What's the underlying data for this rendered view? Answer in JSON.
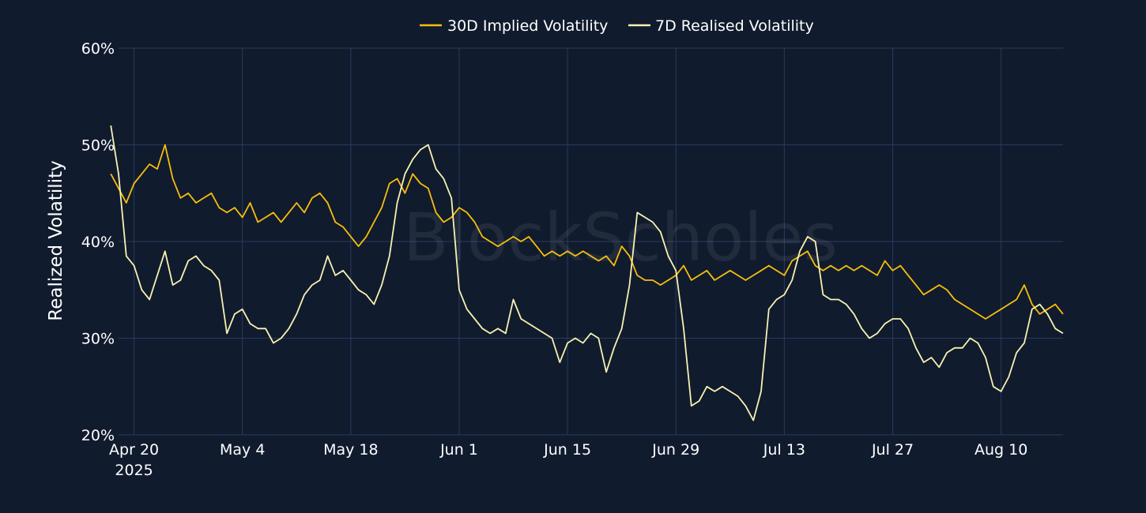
{
  "watermark": "BlockScholes",
  "chart_data": {
    "type": "line",
    "ylabel": "Realized Volatility",
    "ylim": [
      0.2,
      0.6
    ],
    "y_ticks": [
      {
        "value": 0.2,
        "label": "20%"
      },
      {
        "value": 0.3,
        "label": "30%"
      },
      {
        "value": 0.4,
        "label": "40%"
      },
      {
        "value": 0.5,
        "label": "50%"
      },
      {
        "value": 0.6,
        "label": "60%"
      }
    ],
    "xlim": [
      "2025-04-18",
      "2025-08-18"
    ],
    "x_ticks": [
      {
        "date": "2025-04-20",
        "label": "Apr 20",
        "sublabel": "2025"
      },
      {
        "date": "2025-05-04",
        "label": "May 4"
      },
      {
        "date": "2025-05-18",
        "label": "May 18"
      },
      {
        "date": "2025-06-01",
        "label": "Jun 1"
      },
      {
        "date": "2025-06-15",
        "label": "Jun 15"
      },
      {
        "date": "2025-06-29",
        "label": "Jun 29"
      },
      {
        "date": "2025-07-13",
        "label": "Jul 13"
      },
      {
        "date": "2025-07-27",
        "label": "Jul 27"
      },
      {
        "date": "2025-08-10",
        "label": "Aug 10"
      }
    ],
    "grid": true,
    "legend_position": "top-center",
    "series": [
      {
        "name": "30D Implied Volatility",
        "color": "#f5bf0b",
        "points": [
          [
            "2025-04-17",
            0.47
          ],
          [
            "2025-04-18",
            0.455
          ],
          [
            "2025-04-19",
            0.44
          ],
          [
            "2025-04-20",
            0.46
          ],
          [
            "2025-04-21",
            0.47
          ],
          [
            "2025-04-22",
            0.48
          ],
          [
            "2025-04-23",
            0.475
          ],
          [
            "2025-04-24",
            0.5
          ],
          [
            "2025-04-25",
            0.465
          ],
          [
            "2025-04-26",
            0.445
          ],
          [
            "2025-04-27",
            0.45
          ],
          [
            "2025-04-28",
            0.44
          ],
          [
            "2025-04-29",
            0.445
          ],
          [
            "2025-04-30",
            0.45
          ],
          [
            "2025-05-01",
            0.435
          ],
          [
            "2025-05-02",
            0.43
          ],
          [
            "2025-05-03",
            0.435
          ],
          [
            "2025-05-04",
            0.425
          ],
          [
            "2025-05-05",
            0.44
          ],
          [
            "2025-05-06",
            0.42
          ],
          [
            "2025-05-07",
            0.425
          ],
          [
            "2025-05-08",
            0.43
          ],
          [
            "2025-05-09",
            0.42
          ],
          [
            "2025-05-10",
            0.43
          ],
          [
            "2025-05-11",
            0.44
          ],
          [
            "2025-05-12",
            0.43
          ],
          [
            "2025-05-13",
            0.445
          ],
          [
            "2025-05-14",
            0.45
          ],
          [
            "2025-05-15",
            0.44
          ],
          [
            "2025-05-16",
            0.42
          ],
          [
            "2025-05-17",
            0.415
          ],
          [
            "2025-05-18",
            0.405
          ],
          [
            "2025-05-19",
            0.395
          ],
          [
            "2025-05-20",
            0.405
          ],
          [
            "2025-05-21",
            0.42
          ],
          [
            "2025-05-22",
            0.435
          ],
          [
            "2025-05-23",
            0.46
          ],
          [
            "2025-05-24",
            0.465
          ],
          [
            "2025-05-25",
            0.45
          ],
          [
            "2025-05-26",
            0.47
          ],
          [
            "2025-05-27",
            0.46
          ],
          [
            "2025-05-28",
            0.455
          ],
          [
            "2025-05-29",
            0.43
          ],
          [
            "2025-05-30",
            0.42
          ],
          [
            "2025-05-31",
            0.425
          ],
          [
            "2025-06-01",
            0.435
          ],
          [
            "2025-06-02",
            0.43
          ],
          [
            "2025-06-03",
            0.42
          ],
          [
            "2025-06-04",
            0.405
          ],
          [
            "2025-06-05",
            0.4
          ],
          [
            "2025-06-06",
            0.395
          ],
          [
            "2025-06-07",
            0.4
          ],
          [
            "2025-06-08",
            0.405
          ],
          [
            "2025-06-09",
            0.4
          ],
          [
            "2025-06-10",
            0.405
          ],
          [
            "2025-06-11",
            0.395
          ],
          [
            "2025-06-12",
            0.385
          ],
          [
            "2025-06-13",
            0.39
          ],
          [
            "2025-06-14",
            0.385
          ],
          [
            "2025-06-15",
            0.39
          ],
          [
            "2025-06-16",
            0.385
          ],
          [
            "2025-06-17",
            0.39
          ],
          [
            "2025-06-18",
            0.385
          ],
          [
            "2025-06-19",
            0.38
          ],
          [
            "2025-06-20",
            0.385
          ],
          [
            "2025-06-21",
            0.375
          ],
          [
            "2025-06-22",
            0.395
          ],
          [
            "2025-06-23",
            0.385
          ],
          [
            "2025-06-24",
            0.365
          ],
          [
            "2025-06-25",
            0.36
          ],
          [
            "2025-06-26",
            0.36
          ],
          [
            "2025-06-27",
            0.355
          ],
          [
            "2025-06-28",
            0.36
          ],
          [
            "2025-06-29",
            0.365
          ],
          [
            "2025-06-30",
            0.375
          ],
          [
            "2025-07-01",
            0.36
          ],
          [
            "2025-07-02",
            0.365
          ],
          [
            "2025-07-03",
            0.37
          ],
          [
            "2025-07-04",
            0.36
          ],
          [
            "2025-07-05",
            0.365
          ],
          [
            "2025-07-06",
            0.37
          ],
          [
            "2025-07-07",
            0.365
          ],
          [
            "2025-07-08",
            0.36
          ],
          [
            "2025-07-09",
            0.365
          ],
          [
            "2025-07-10",
            0.37
          ],
          [
            "2025-07-11",
            0.375
          ],
          [
            "2025-07-12",
            0.37
          ],
          [
            "2025-07-13",
            0.365
          ],
          [
            "2025-07-14",
            0.38
          ],
          [
            "2025-07-15",
            0.385
          ],
          [
            "2025-07-16",
            0.39
          ],
          [
            "2025-07-17",
            0.375
          ],
          [
            "2025-07-18",
            0.37
          ],
          [
            "2025-07-19",
            0.375
          ],
          [
            "2025-07-20",
            0.37
          ],
          [
            "2025-07-21",
            0.375
          ],
          [
            "2025-07-22",
            0.37
          ],
          [
            "2025-07-23",
            0.375
          ],
          [
            "2025-07-24",
            0.37
          ],
          [
            "2025-07-25",
            0.365
          ],
          [
            "2025-07-26",
            0.38
          ],
          [
            "2025-07-27",
            0.37
          ],
          [
            "2025-07-28",
            0.375
          ],
          [
            "2025-07-29",
            0.365
          ],
          [
            "2025-07-30",
            0.355
          ],
          [
            "2025-07-31",
            0.345
          ],
          [
            "2025-08-01",
            0.35
          ],
          [
            "2025-08-02",
            0.355
          ],
          [
            "2025-08-03",
            0.35
          ],
          [
            "2025-08-04",
            0.34
          ],
          [
            "2025-08-05",
            0.335
          ],
          [
            "2025-08-06",
            0.33
          ],
          [
            "2025-08-07",
            0.325
          ],
          [
            "2025-08-08",
            0.32
          ],
          [
            "2025-08-09",
            0.325
          ],
          [
            "2025-08-10",
            0.33
          ],
          [
            "2025-08-11",
            0.335
          ],
          [
            "2025-08-12",
            0.34
          ],
          [
            "2025-08-13",
            0.355
          ],
          [
            "2025-08-14",
            0.335
          ],
          [
            "2025-08-15",
            0.325
          ],
          [
            "2025-08-16",
            0.33
          ],
          [
            "2025-08-17",
            0.335
          ],
          [
            "2025-08-18",
            0.325
          ]
        ]
      },
      {
        "name": "7D Realised Volatility",
        "color": "#f7f2b0",
        "points": [
          [
            "2025-04-17",
            0.52
          ],
          [
            "2025-04-18",
            0.47
          ],
          [
            "2025-04-19",
            0.385
          ],
          [
            "2025-04-20",
            0.375
          ],
          [
            "2025-04-21",
            0.35
          ],
          [
            "2025-04-22",
            0.34
          ],
          [
            "2025-04-23",
            0.365
          ],
          [
            "2025-04-24",
            0.39
          ],
          [
            "2025-04-25",
            0.355
          ],
          [
            "2025-04-26",
            0.36
          ],
          [
            "2025-04-27",
            0.38
          ],
          [
            "2025-04-28",
            0.385
          ],
          [
            "2025-04-29",
            0.375
          ],
          [
            "2025-04-30",
            0.37
          ],
          [
            "2025-05-01",
            0.36
          ],
          [
            "2025-05-02",
            0.305
          ],
          [
            "2025-05-03",
            0.325
          ],
          [
            "2025-05-04",
            0.33
          ],
          [
            "2025-05-05",
            0.315
          ],
          [
            "2025-05-06",
            0.31
          ],
          [
            "2025-05-07",
            0.31
          ],
          [
            "2025-05-08",
            0.295
          ],
          [
            "2025-05-09",
            0.3
          ],
          [
            "2025-05-10",
            0.31
          ],
          [
            "2025-05-11",
            0.325
          ],
          [
            "2025-05-12",
            0.345
          ],
          [
            "2025-05-13",
            0.355
          ],
          [
            "2025-05-14",
            0.36
          ],
          [
            "2025-05-15",
            0.385
          ],
          [
            "2025-05-16",
            0.365
          ],
          [
            "2025-05-17",
            0.37
          ],
          [
            "2025-05-18",
            0.36
          ],
          [
            "2025-05-19",
            0.35
          ],
          [
            "2025-05-20",
            0.345
          ],
          [
            "2025-05-21",
            0.335
          ],
          [
            "2025-05-22",
            0.355
          ],
          [
            "2025-05-23",
            0.385
          ],
          [
            "2025-05-24",
            0.44
          ],
          [
            "2025-05-25",
            0.47
          ],
          [
            "2025-05-26",
            0.485
          ],
          [
            "2025-05-27",
            0.495
          ],
          [
            "2025-05-28",
            0.5
          ],
          [
            "2025-05-29",
            0.475
          ],
          [
            "2025-05-30",
            0.465
          ],
          [
            "2025-05-31",
            0.445
          ],
          [
            "2025-06-01",
            0.35
          ],
          [
            "2025-06-02",
            0.33
          ],
          [
            "2025-06-03",
            0.32
          ],
          [
            "2025-06-04",
            0.31
          ],
          [
            "2025-06-05",
            0.305
          ],
          [
            "2025-06-06",
            0.31
          ],
          [
            "2025-06-07",
            0.305
          ],
          [
            "2025-06-08",
            0.34
          ],
          [
            "2025-06-09",
            0.32
          ],
          [
            "2025-06-10",
            0.315
          ],
          [
            "2025-06-11",
            0.31
          ],
          [
            "2025-06-12",
            0.305
          ],
          [
            "2025-06-13",
            0.3
          ],
          [
            "2025-06-14",
            0.275
          ],
          [
            "2025-06-15",
            0.295
          ],
          [
            "2025-06-16",
            0.3
          ],
          [
            "2025-06-17",
            0.295
          ],
          [
            "2025-06-18",
            0.305
          ],
          [
            "2025-06-19",
            0.3
          ],
          [
            "2025-06-20",
            0.265
          ],
          [
            "2025-06-21",
            0.29
          ],
          [
            "2025-06-22",
            0.31
          ],
          [
            "2025-06-23",
            0.355
          ],
          [
            "2025-06-24",
            0.43
          ],
          [
            "2025-06-25",
            0.425
          ],
          [
            "2025-06-26",
            0.42
          ],
          [
            "2025-06-27",
            0.41
          ],
          [
            "2025-06-28",
            0.385
          ],
          [
            "2025-06-29",
            0.37
          ],
          [
            "2025-06-30",
            0.31
          ],
          [
            "2025-07-01",
            0.23
          ],
          [
            "2025-07-02",
            0.235
          ],
          [
            "2025-07-03",
            0.25
          ],
          [
            "2025-07-04",
            0.245
          ],
          [
            "2025-07-05",
            0.25
          ],
          [
            "2025-07-06",
            0.245
          ],
          [
            "2025-07-07",
            0.24
          ],
          [
            "2025-07-08",
            0.23
          ],
          [
            "2025-07-09",
            0.215
          ],
          [
            "2025-07-10",
            0.245
          ],
          [
            "2025-07-11",
            0.33
          ],
          [
            "2025-07-12",
            0.34
          ],
          [
            "2025-07-13",
            0.345
          ],
          [
            "2025-07-14",
            0.36
          ],
          [
            "2025-07-15",
            0.39
          ],
          [
            "2025-07-16",
            0.405
          ],
          [
            "2025-07-17",
            0.4
          ],
          [
            "2025-07-18",
            0.345
          ],
          [
            "2025-07-19",
            0.34
          ],
          [
            "2025-07-20",
            0.34
          ],
          [
            "2025-07-21",
            0.335
          ],
          [
            "2025-07-22",
            0.325
          ],
          [
            "2025-07-23",
            0.31
          ],
          [
            "2025-07-24",
            0.3
          ],
          [
            "2025-07-25",
            0.305
          ],
          [
            "2025-07-26",
            0.315
          ],
          [
            "2025-07-27",
            0.32
          ],
          [
            "2025-07-28",
            0.32
          ],
          [
            "2025-07-29",
            0.31
          ],
          [
            "2025-07-30",
            0.29
          ],
          [
            "2025-07-31",
            0.275
          ],
          [
            "2025-08-01",
            0.28
          ],
          [
            "2025-08-02",
            0.27
          ],
          [
            "2025-08-03",
            0.285
          ],
          [
            "2025-08-04",
            0.29
          ],
          [
            "2025-08-05",
            0.29
          ],
          [
            "2025-08-06",
            0.3
          ],
          [
            "2025-08-07",
            0.295
          ],
          [
            "2025-08-08",
            0.28
          ],
          [
            "2025-08-09",
            0.25
          ],
          [
            "2025-08-10",
            0.245
          ],
          [
            "2025-08-11",
            0.26
          ],
          [
            "2025-08-12",
            0.285
          ],
          [
            "2025-08-13",
            0.295
          ],
          [
            "2025-08-14",
            0.33
          ],
          [
            "2025-08-15",
            0.335
          ],
          [
            "2025-08-16",
            0.325
          ],
          [
            "2025-08-17",
            0.31
          ],
          [
            "2025-08-18",
            0.305
          ]
        ]
      }
    ]
  }
}
